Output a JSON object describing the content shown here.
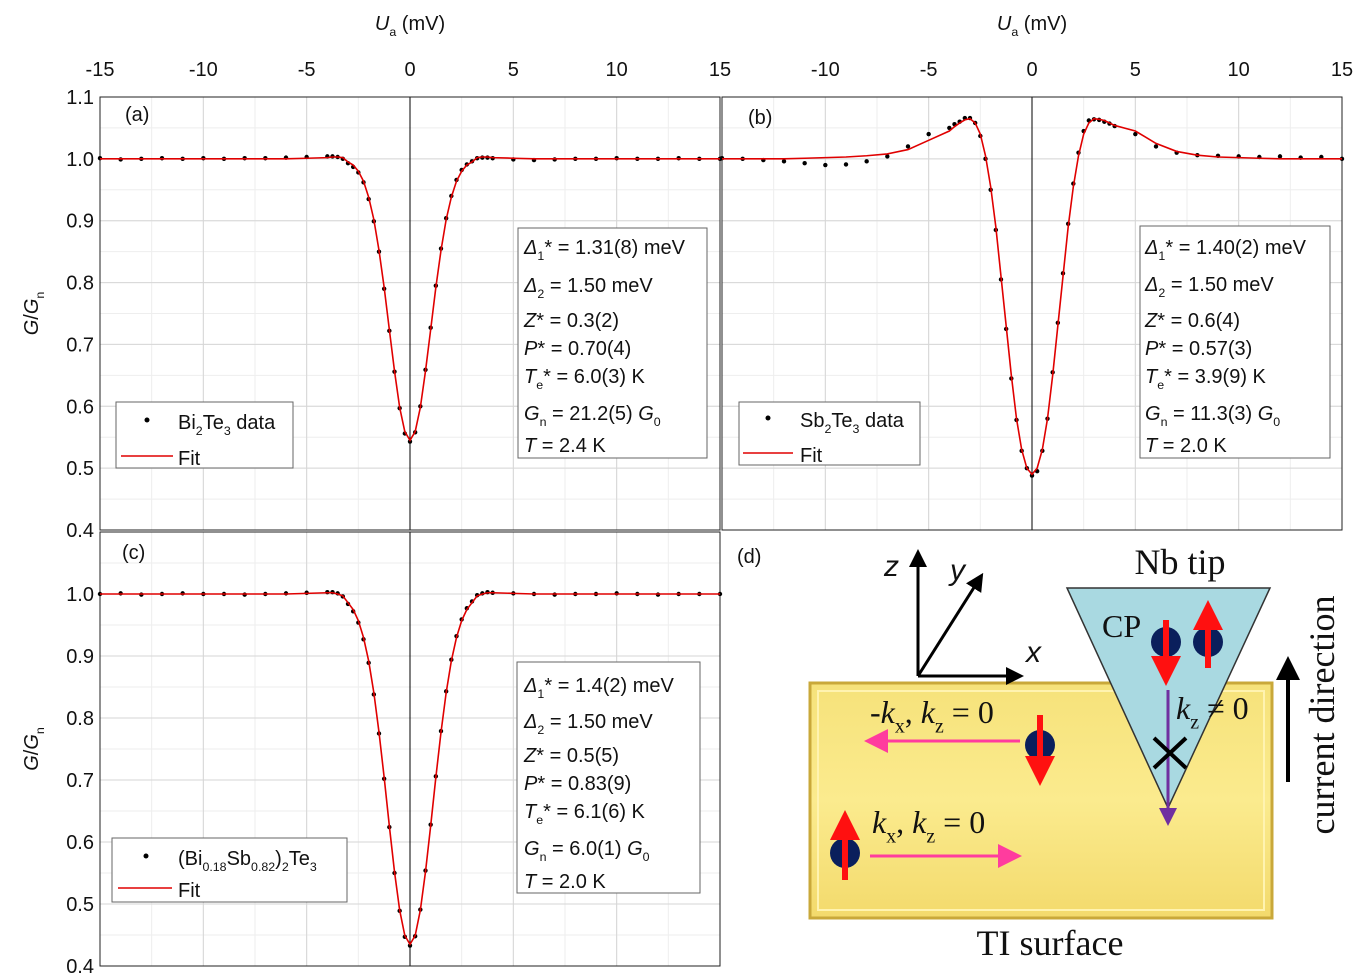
{
  "chart_data": [
    {
      "type": "line",
      "panel_label": "(a)",
      "xlabel": "Ua (mV)",
      "ylabel": "G/Gn",
      "xlim": [
        -15,
        15
      ],
      "xticks": [
        -15,
        -10,
        -5,
        0,
        5,
        10,
        15
      ],
      "ylim": [
        0.4,
        1.1
      ],
      "yticks": [
        0.4,
        0.5,
        0.6,
        0.7,
        0.8,
        0.9,
        {
          "value": 1,
          "label": "1.0"
        },
        1.1
      ],
      "grid": true,
      "vline": 0,
      "x": [
        -15,
        -14,
        -13,
        -12,
        -11,
        -10,
        -9,
        -8,
        -7,
        -6,
        -5,
        -4,
        -3.75,
        -3.5,
        -3.25,
        -3,
        -2.75,
        -2.5,
        -2.25,
        -2,
        -1.75,
        -1.5,
        -1.25,
        -1,
        -0.75,
        -0.5,
        -0.25,
        0,
        0.25,
        0.5,
        0.75,
        1,
        1.25,
        1.5,
        1.75,
        2,
        2.25,
        2.5,
        2.75,
        3,
        3.25,
        3.5,
        3.75,
        4,
        5,
        6,
        7,
        8,
        9,
        10,
        11,
        12,
        13,
        14,
        15
      ],
      "series": [
        {
          "name": "Bi2Te3 data",
          "color": "#000000",
          "mode": "markers",
          "values": [
            1.001,
            0.999,
            1.0,
            1.001,
            1.0,
            1.001,
            1.0,
            1.001,
            1.001,
            1.002,
            1.003,
            1.004,
            1.004,
            1.003,
            1.0,
            0.993,
            0.987,
            0.978,
            0.962,
            0.935,
            0.899,
            0.85,
            0.79,
            0.722,
            0.656,
            0.597,
            0.556,
            0.543,
            0.558,
            0.6,
            0.659,
            0.727,
            0.795,
            0.855,
            0.904,
            0.94,
            0.966,
            0.982,
            0.991,
            0.996,
            1.001,
            1.002,
            1.002,
            1.001,
            0.999,
            0.998,
            0.999,
            1.0,
            1.0,
            1.001,
            1.0,
            1.0,
            1.001,
            1.0,
            1.0
          ]
        },
        {
          "name": "Fit",
          "color": "#e00000",
          "mode": "lines",
          "values": [
            1,
            1,
            1,
            1,
            1,
            1,
            1,
            1,
            1,
            1,
            1.001,
            1.002,
            1.003,
            1.003,
            1.002,
            0.995,
            0.99,
            0.98,
            0.964,
            0.938,
            0.902,
            0.852,
            0.792,
            0.724,
            0.657,
            0.598,
            0.559,
            0.545,
            0.559,
            0.598,
            0.657,
            0.724,
            0.792,
            0.852,
            0.902,
            0.938,
            0.964,
            0.98,
            0.99,
            0.995,
            1.002,
            1.003,
            1.003,
            1.002,
            1.001,
            1,
            1,
            1,
            1,
            1,
            1,
            1,
            1,
            1,
            1
          ]
        }
      ],
      "annotations": [
        "Δ1* = 1.31(8) meV",
        "Δ2 = 1.50 meV",
        "Z* = 0.3(2)",
        "P* = 0.70(4)",
        "Te* = 6.0(3) K",
        "Gn = 21.2(5) G0",
        "T = 2.4 K"
      ]
    },
    {
      "type": "line",
      "panel_label": "(b)",
      "xlabel": "Ua (mV)",
      "xlim": [
        -15,
        15
      ],
      "xticks": [
        -10,
        -5,
        0,
        5,
        10,
        15
      ],
      "ylim": [
        0.4,
        1.1
      ],
      "yticks": [
        0.4,
        0.5,
        0.6,
        0.7,
        0.8,
        0.9,
        1,
        1.1
      ],
      "ytick_labels": false,
      "grid": true,
      "vline": 0,
      "x": [
        -15,
        -14,
        -13,
        -12,
        -11,
        -10,
        -9,
        -8,
        -7,
        -6,
        -5,
        -4,
        -3.75,
        -3.5,
        -3.25,
        -3,
        -2.75,
        -2.5,
        -2.25,
        -2,
        -1.75,
        -1.5,
        -1.25,
        -1,
        -0.75,
        -0.5,
        -0.25,
        0,
        0.25,
        0.5,
        0.75,
        1,
        1.25,
        1.5,
        1.75,
        2,
        2.25,
        2.5,
        2.75,
        3,
        3.25,
        3.5,
        3.75,
        4,
        5,
        6,
        7,
        8,
        9,
        10,
        11,
        12,
        13,
        14,
        15
      ],
      "series": [
        {
          "name": "Sb2Te3 data",
          "color": "#000000",
          "mode": "markers",
          "values": [
            1.001,
            1.0,
            0.998,
            0.996,
            0.993,
            0.99,
            0.991,
            0.996,
            1.004,
            1.02,
            1.04,
            1.05,
            1.056,
            1.06,
            1.066,
            1.066,
            1.058,
            1.037,
            1.0,
            0.95,
            0.885,
            0.805,
            0.725,
            0.645,
            0.578,
            0.528,
            0.5,
            0.488,
            0.495,
            0.528,
            0.58,
            0.655,
            0.735,
            0.815,
            0.895,
            0.96,
            1.01,
            1.045,
            1.062,
            1.064,
            1.063,
            1.06,
            1.057,
            1.053,
            1.04,
            1.02,
            1.01,
            1.006,
            1.005,
            1.004,
            1.003,
            1.004,
            1.002,
            1.003,
            1.0
          ]
        },
        {
          "name": "Fit",
          "color": "#e00000",
          "mode": "lines",
          "values": [
            1,
            1,
            1,
            1,
            1.001,
            1.002,
            1.003,
            1.005,
            1.008,
            1.015,
            1.03,
            1.045,
            1.052,
            1.058,
            1.063,
            1.065,
            1.058,
            1.04,
            1.005,
            0.955,
            0.89,
            0.81,
            0.73,
            0.65,
            0.58,
            0.53,
            0.5,
            0.49,
            0.5,
            0.53,
            0.58,
            0.65,
            0.73,
            0.81,
            0.89,
            0.955,
            1.005,
            1.04,
            1.058,
            1.065,
            1.064,
            1.062,
            1.058,
            1.054,
            1.045,
            1.025,
            1.012,
            1.006,
            1.003,
            1.002,
            1.001,
            1.0,
            1.0,
            1.0,
            1.0
          ]
        }
      ],
      "annotations": [
        "Δ1* = 1.40(2) meV",
        "Δ2 = 1.50 meV",
        "Z* = 0.6(4)",
        "P* = 0.57(3)",
        "Te* = 3.9(9) K",
        "Gn = 11.3(3) G0",
        "T = 2.0 K"
      ]
    },
    {
      "type": "line",
      "panel_label": "(c)",
      "ylabel": "G/Gn",
      "xlim": [
        -15,
        15
      ],
      "xticks": [
        -15,
        -10,
        -5,
        0,
        5,
        10,
        15
      ],
      "xtick_labels": false,
      "ylim": [
        0.4,
        1.1
      ],
      "yticks": [
        0.4,
        0.5,
        0.6,
        0.7,
        0.8,
        0.9,
        {
          "value": 1,
          "label": "1.0"
        }
      ],
      "grid": true,
      "vline": 0,
      "x": [
        -15,
        -14,
        -13,
        -12,
        -11,
        -10,
        -9,
        -8,
        -7,
        -6,
        -5,
        -4,
        -3.75,
        -3.5,
        -3.25,
        -3,
        -2.75,
        -2.5,
        -2.25,
        -2,
        -1.75,
        -1.5,
        -1.25,
        -1,
        -0.75,
        -0.5,
        -0.25,
        0,
        0.25,
        0.5,
        0.75,
        1,
        1.25,
        1.5,
        1.75,
        2,
        2.25,
        2.5,
        2.75,
        3,
        3.25,
        3.5,
        3.75,
        4,
        5,
        6,
        7,
        8,
        9,
        10,
        11,
        12,
        13,
        14,
        15
      ],
      "series": [
        {
          "name": "(Bi0.18Sb0.82)2Te3",
          "color": "#000000",
          "mode": "markers",
          "values": [
            1.0,
            1.001,
            0.999,
            1.0,
            1.001,
            1.0,
            1.0,
            0.999,
            1.0,
            1.001,
            1.002,
            1.003,
            1.003,
            1.001,
            0.996,
            0.984,
            0.972,
            0.954,
            0.927,
            0.889,
            0.838,
            0.775,
            0.702,
            0.624,
            0.55,
            0.489,
            0.447,
            0.433,
            0.448,
            0.491,
            0.554,
            0.628,
            0.706,
            0.779,
            0.843,
            0.894,
            0.932,
            0.959,
            0.977,
            0.988,
            0.998,
            1.001,
            1.003,
            1.002,
            1.001,
            1.0,
            0.999,
            1.0,
            1.0,
            1.001,
            1.0,
            0.999,
            1.0,
            1.0,
            1.0
          ]
        },
        {
          "name": "Fit",
          "color": "#e00000",
          "mode": "lines",
          "values": [
            1,
            1,
            1,
            1,
            1,
            1,
            1,
            1,
            1,
            1,
            1.001,
            1.002,
            1.002,
            1.0,
            0.997,
            0.986,
            0.975,
            0.957,
            0.93,
            0.892,
            0.841,
            0.777,
            0.704,
            0.626,
            0.552,
            0.49,
            0.449,
            0.435,
            0.449,
            0.49,
            0.552,
            0.626,
            0.704,
            0.777,
            0.841,
            0.892,
            0.93,
            0.957,
            0.975,
            0.986,
            0.997,
            1.0,
            1.002,
            1.002,
            1.001,
            1,
            1,
            1,
            1,
            1,
            1,
            1,
            1,
            1,
            1
          ]
        }
      ],
      "annotations": [
        "Δ1* = 1.4(2) meV",
        "Δ2 = 1.50 meV",
        "Z* = 0.5(5)",
        "P* = 0.83(9)",
        "Te* = 6.1(6) K",
        "Gn = 6.0(1) G0",
        "T = 2.0 K"
      ]
    }
  ],
  "diagram": {
    "label": "(d)",
    "tip": "Nb tip",
    "cp": "CP",
    "current": "current direction",
    "surface": "TI surface",
    "axis_z": "z",
    "axis_y": "y",
    "axis_x": "x",
    "neg_k": "-kx, kz = 0",
    "pos_k": "kx, kz = 0",
    "kz": "kz ≠ 0"
  }
}
